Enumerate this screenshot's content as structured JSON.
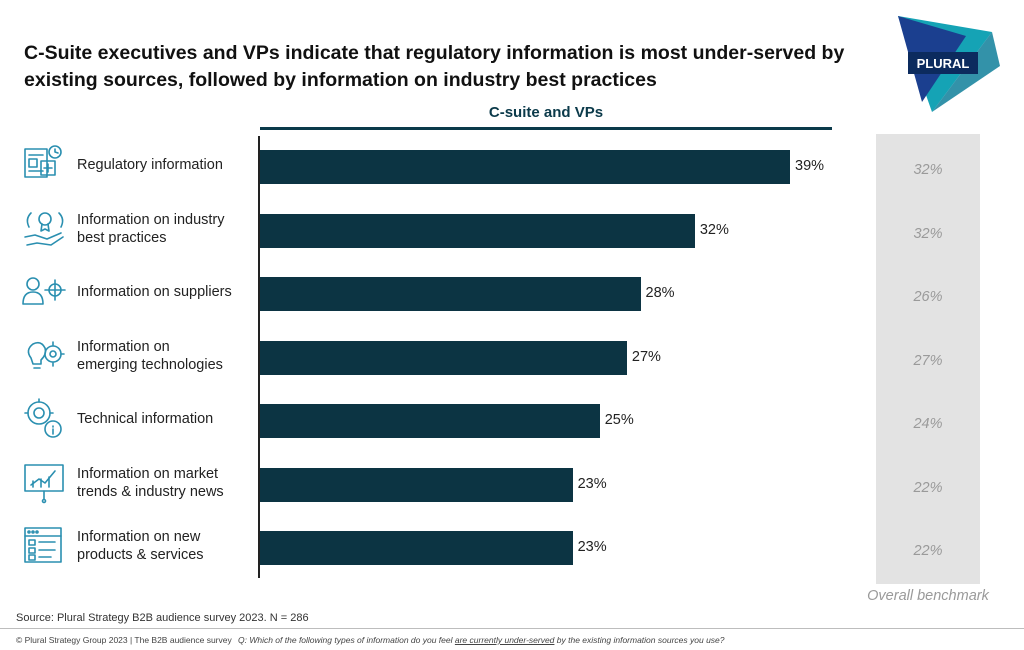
{
  "title": "C-Suite executives and VPs indicate that regulatory information is most under-served by existing sources, followed by information on industry best practices",
  "logo": {
    "text": "PLURAL",
    "colors": [
      "#1b3f8f",
      "#15a3b5",
      "#0c2b5e"
    ]
  },
  "colors": {
    "bar": "#0c3443",
    "header": "#0b3a4a",
    "icon": "#2a8fb0",
    "benchmark_panel": "#e3e3e3",
    "benchmark_text": "#9a9a9a"
  },
  "chart_data": {
    "type": "bar",
    "orientation": "horizontal",
    "series_header": "C-suite and VPs",
    "categories": [
      "Regulatory information",
      "Information on industry best practices",
      "Information on suppliers",
      "Information on emerging technologies",
      "Technical information",
      "Information on market trends & industry news",
      "Information on new products & services"
    ],
    "category_lines": [
      [
        "Regulatory information"
      ],
      [
        "Information on industry",
        "best practices"
      ],
      [
        "Information on suppliers"
      ],
      [
        "Information on",
        "emerging technologies"
      ],
      [
        "Technical information"
      ],
      [
        "Information on market",
        "trends & industry news"
      ],
      [
        "Information on new",
        "products & services"
      ]
    ],
    "icons": [
      "regulation-document-icon",
      "best-practice-award-icon",
      "supplier-target-icon",
      "emerging-tech-bulb-gear-icon",
      "technical-gear-info-icon",
      "market-trends-board-icon",
      "new-products-list-icon"
    ],
    "values": [
      39,
      32,
      28,
      27,
      25,
      23,
      23
    ],
    "value_labels": [
      "39%",
      "32%",
      "28%",
      "27%",
      "25%",
      "23%",
      "23%"
    ],
    "xlim": [
      0,
      40
    ],
    "benchmark": {
      "label": "Overall benchmark",
      "values": [
        32,
        32,
        26,
        27,
        24,
        22,
        22
      ],
      "value_labels": [
        "32%",
        "32%",
        "26%",
        "27%",
        "24%",
        "22%",
        "22%"
      ]
    }
  },
  "footer": {
    "source": "Source: Plural Strategy B2B audience survey 2023. N = 286",
    "copyright": "© Plural Strategy Group 2023 | The B2B audience survey",
    "question_pre": "Q: Which of the following types of information do you feel ",
    "question_underlined": "are currently under-served",
    "question_post": " by the existing information sources you use?"
  }
}
